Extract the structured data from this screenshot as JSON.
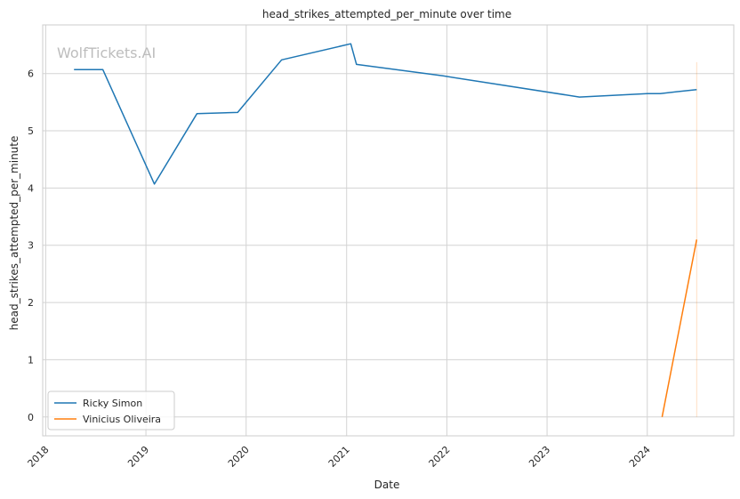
{
  "watermark": "WolfTickets.AI",
  "chart_data": {
    "type": "line",
    "title": "head_strikes_attempted_per_minute over time",
    "xlabel": "Date",
    "ylabel": "head_strikes_attempted_per_minute",
    "x_ticks": [
      "2018",
      "2019",
      "2020",
      "2021",
      "2022",
      "2023",
      "2024"
    ],
    "y_ticks": [
      0,
      1,
      2,
      3,
      4,
      5,
      6
    ],
    "xlim": [
      "2017-12-21",
      "2024-11-11"
    ],
    "ylim": [
      -0.33,
      6.85
    ],
    "grid": true,
    "legend_position": "lower-left",
    "series": [
      {
        "name": "Ricky Simon",
        "color": "#1f77b4",
        "points": [
          {
            "x": "2018-04-14",
            "y": 6.07
          },
          {
            "x": "2018-07-28",
            "y": 6.07
          },
          {
            "x": "2019-02-01",
            "y": 4.07
          },
          {
            "x": "2019-07-06",
            "y": 5.3
          },
          {
            "x": "2019-12-01",
            "y": 5.32
          },
          {
            "x": "2020-05-09",
            "y": 6.24
          },
          {
            "x": "2021-01-16",
            "y": 6.52
          },
          {
            "x": "2021-02-06",
            "y": 6.16
          },
          {
            "x": "2021-12-18",
            "y": 5.96
          },
          {
            "x": "2023-04-29",
            "y": 5.59
          },
          {
            "x": "2024-01-01",
            "y": 5.65
          },
          {
            "x": "2024-02-17",
            "y": 5.65
          },
          {
            "x": "2024-06-29",
            "y": 5.72
          }
        ]
      },
      {
        "name": "Vinicius Oliveira",
        "color": "#ff7f0e",
        "points": [
          {
            "x": "2024-02-24",
            "y": 0.0
          },
          {
            "x": "2024-06-29",
            "y": 3.1
          }
        ]
      }
    ],
    "annotations": [
      {
        "type": "vline",
        "x": "2024-06-29",
        "y_range": [
          0,
          6.2
        ],
        "color": "#ff7f0e"
      }
    ]
  }
}
